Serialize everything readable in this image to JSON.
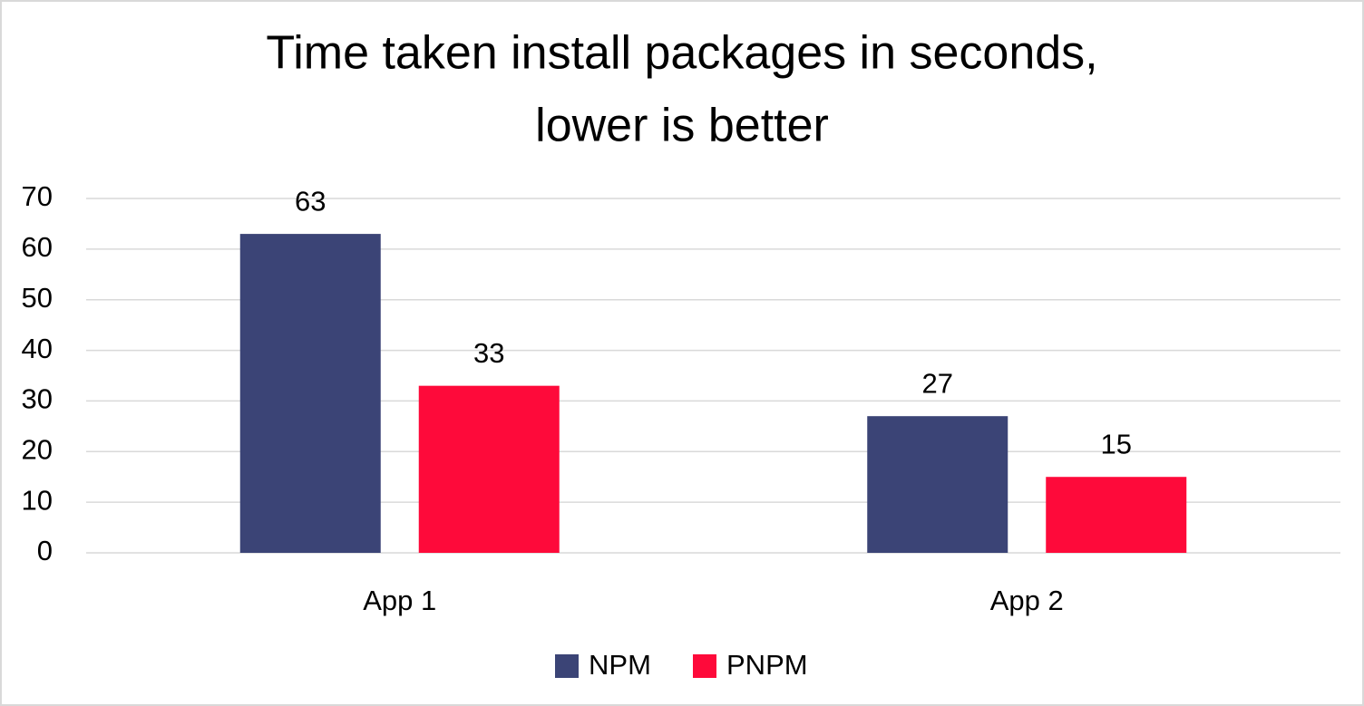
{
  "chart_data": {
    "type": "bar",
    "title": [
      "Time taken install packages in seconds,",
      "lower is better"
    ],
    "categories": [
      "App 1",
      "App 2"
    ],
    "series": [
      {
        "name": "NPM",
        "color": "#3b4476",
        "values": [
          63,
          27
        ]
      },
      {
        "name": "PNPM",
        "color": "#fe0a3a",
        "values": [
          33,
          15
        ]
      }
    ],
    "ylim": [
      0,
      70
    ],
    "yticks": [
      0,
      10,
      20,
      30,
      40,
      50,
      60,
      70
    ],
    "grid": true,
    "legend": "bottom"
  }
}
